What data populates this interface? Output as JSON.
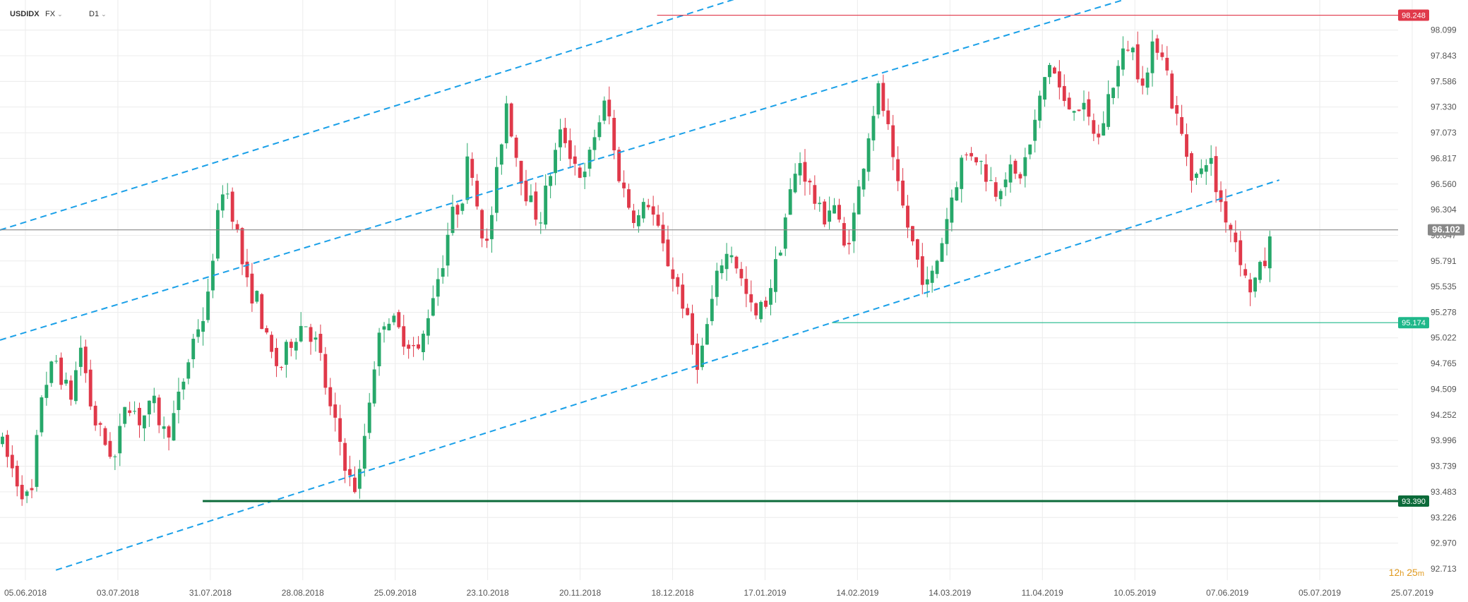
{
  "header": {
    "symbol": "USDIDX",
    "market": "FX",
    "interval": "D1",
    "dropdown_glyph": "⌄"
  },
  "timer": {
    "hours": "12",
    "h": "h",
    "minutes": "25",
    "m": "m"
  },
  "colors": {
    "up": "#27a86a",
    "down": "#e0394a",
    "channel": "#1aa0e8",
    "resistance": "#e0394a",
    "support_mid": "#1fb88a",
    "support_low": "#0c6b3a",
    "current": "#888888",
    "grid": "#ececec"
  },
  "chart_data": {
    "type": "candlestick",
    "ylim": [
      92.6,
      98.4
    ],
    "y_ticks": [
      "98.099",
      "97.843",
      "97.586",
      "97.330",
      "97.073",
      "96.817",
      "96.560",
      "96.304",
      "96.047",
      "95.791",
      "95.535",
      "95.278",
      "95.022",
      "94.765",
      "94.509",
      "94.252",
      "93.996",
      "93.739",
      "93.483",
      "93.226",
      "92.970",
      "92.713"
    ],
    "x_ticks": [
      "05.06.2018",
      "03.07.2018",
      "31.07.2018",
      "28.08.2018",
      "25.09.2018",
      "23.10.2018",
      "20.11.2018",
      "18.12.2018",
      "17.01.2019",
      "14.02.2019",
      "14.03.2019",
      "11.04.2019",
      "10.05.2019",
      "07.06.2019",
      "05.07.2019",
      "25.07.2019"
    ],
    "levels": [
      {
        "name": "resistance",
        "value": 98.248,
        "label": "98.248",
        "color": "#e0394a",
        "from_x": 0.47
      },
      {
        "name": "current-price",
        "value": 96.102,
        "label": "96.102",
        "color": "#888888",
        "from_x": 0.0
      },
      {
        "name": "support-mid",
        "value": 95.174,
        "label": "95.174",
        "color": "#1fb88a",
        "from_x": 0.595
      },
      {
        "name": "support-low",
        "value": 93.39,
        "label": "93.390",
        "color": "#0c6b3a",
        "from_x": 0.145
      }
    ],
    "channels": [
      {
        "x1": 0.0,
        "y1": 96.1,
        "x2": 0.535,
        "y2": 98.45
      },
      {
        "x1": 0.0,
        "y1": 95.0,
        "x2": 0.815,
        "y2": 98.45
      },
      {
        "x1": 0.04,
        "y1": 92.7,
        "x2": 0.915,
        "y2": 96.6
      }
    ],
    "anchors": [
      [
        0.0,
        94.0
      ],
      [
        0.012,
        93.6
      ],
      [
        0.022,
        93.35
      ],
      [
        0.03,
        94.5
      ],
      [
        0.04,
        94.8
      ],
      [
        0.05,
        94.4
      ],
      [
        0.058,
        94.95
      ],
      [
        0.066,
        94.25
      ],
      [
        0.074,
        94.0
      ],
      [
        0.083,
        93.8
      ],
      [
        0.09,
        94.45
      ],
      [
        0.1,
        94.2
      ],
      [
        0.11,
        94.35
      ],
      [
        0.118,
        94.05
      ],
      [
        0.125,
        94.25
      ],
      [
        0.133,
        94.7
      ],
      [
        0.14,
        95.1
      ],
      [
        0.148,
        95.3
      ],
      [
        0.152,
        95.85
      ],
      [
        0.16,
        96.6
      ],
      [
        0.168,
        96.2
      ],
      [
        0.176,
        95.55
      ],
      [
        0.184,
        95.4
      ],
      [
        0.192,
        94.9
      ],
      [
        0.2,
        94.7
      ],
      [
        0.208,
        95.0
      ],
      [
        0.218,
        95.2
      ],
      [
        0.228,
        94.9
      ],
      [
        0.236,
        94.3
      ],
      [
        0.243,
        94.0
      ],
      [
        0.25,
        93.6
      ],
      [
        0.256,
        93.5
      ],
      [
        0.262,
        94.2
      ],
      [
        0.268,
        94.8
      ],
      [
        0.276,
        95.3
      ],
      [
        0.284,
        95.1
      ],
      [
        0.292,
        95.0
      ],
      [
        0.3,
        94.85
      ],
      [
        0.308,
        95.4
      ],
      [
        0.316,
        95.75
      ],
      [
        0.322,
        96.2
      ],
      [
        0.33,
        96.4
      ],
      [
        0.336,
        96.9
      ],
      [
        0.342,
        96.3
      ],
      [
        0.348,
        95.9
      ],
      [
        0.355,
        96.6
      ],
      [
        0.362,
        97.4
      ],
      [
        0.37,
        96.8
      ],
      [
        0.378,
        96.4
      ],
      [
        0.386,
        96.2
      ],
      [
        0.394,
        96.7
      ],
      [
        0.402,
        97.1
      ],
      [
        0.41,
        96.8
      ],
      [
        0.418,
        96.6
      ],
      [
        0.426,
        97.1
      ],
      [
        0.434,
        97.4
      ],
      [
        0.44,
        96.8
      ],
      [
        0.448,
        96.4
      ],
      [
        0.456,
        96.2
      ],
      [
        0.464,
        96.4
      ],
      [
        0.472,
        96.0
      ],
      [
        0.48,
        95.7
      ],
      [
        0.488,
        95.4
      ],
      [
        0.494,
        95.0
      ],
      [
        0.5,
        94.75
      ],
      [
        0.508,
        95.3
      ],
      [
        0.516,
        95.8
      ],
      [
        0.524,
        95.9
      ],
      [
        0.532,
        95.5
      ],
      [
        0.54,
        95.2
      ],
      [
        0.548,
        95.4
      ],
      [
        0.556,
        95.8
      ],
      [
        0.564,
        96.4
      ],
      [
        0.572,
        96.8
      ],
      [
        0.58,
        96.5
      ],
      [
        0.588,
        96.2
      ],
      [
        0.596,
        96.4
      ],
      [
        0.604,
        95.9
      ],
      [
        0.612,
        96.3
      ],
      [
        0.62,
        97.0
      ],
      [
        0.628,
        97.5
      ],
      [
        0.634,
        97.2
      ],
      [
        0.64,
        96.6
      ],
      [
        0.648,
        96.2
      ],
      [
        0.656,
        95.8
      ],
      [
        0.664,
        95.5
      ],
      [
        0.672,
        95.9
      ],
      [
        0.68,
        96.4
      ],
      [
        0.688,
        96.8
      ],
      [
        0.696,
        96.9
      ],
      [
        0.704,
        96.7
      ],
      [
        0.712,
        96.5
      ],
      [
        0.72,
        96.7
      ],
      [
        0.728,
        96.6
      ],
      [
        0.736,
        96.9
      ],
      [
        0.744,
        97.4
      ],
      [
        0.75,
        97.8
      ],
      [
        0.756,
        97.6
      ],
      [
        0.762,
        97.3
      ],
      [
        0.77,
        97.4
      ],
      [
        0.778,
        97.2
      ],
      [
        0.786,
        97.0
      ],
      [
        0.794,
        97.5
      ],
      [
        0.802,
        97.8
      ],
      [
        0.808,
        98.0
      ],
      [
        0.814,
        97.7
      ],
      [
        0.82,
        97.6
      ],
      [
        0.826,
        98.0
      ],
      [
        0.832,
        97.9
      ],
      [
        0.838,
        97.4
      ],
      [
        0.846,
        97.0
      ],
      [
        0.852,
        96.7
      ],
      [
        0.858,
        96.6
      ],
      [
        0.864,
        96.9
      ],
      [
        0.87,
        96.5
      ],
      [
        0.878,
        96.2
      ],
      [
        0.884,
        96.0
      ],
      [
        0.888,
        95.8
      ],
      [
        0.892,
        95.5
      ],
      [
        0.898,
        95.6
      ],
      [
        0.904,
        95.75
      ],
      [
        0.91,
        96.05
      ]
    ]
  }
}
